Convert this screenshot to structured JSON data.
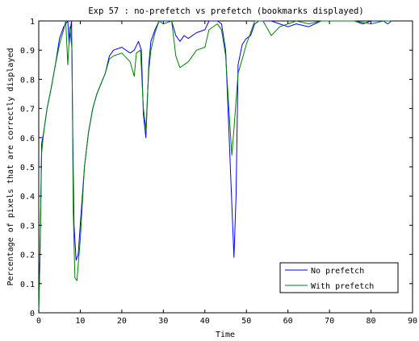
{
  "chart_data": {
    "type": "line",
    "title": "Exp 57 : no-prefetch vs prefetch (bookmarks displayed)",
    "xlabel": "Time",
    "ylabel": "Percentage of pixels that are correctly displayed",
    "xlim": [
      0,
      90
    ],
    "ylim": [
      0,
      1
    ],
    "xticks": [
      0,
      10,
      20,
      30,
      40,
      50,
      60,
      70,
      80,
      90
    ],
    "yticks": [
      0,
      0.1,
      0.2,
      0.3,
      0.4,
      0.5,
      0.6,
      0.7,
      0.8,
      0.9,
      1
    ],
    "grid": false,
    "legend": "bottom-right",
    "series": [
      {
        "name": "No prefetch",
        "color": "#0000ff",
        "points": [
          [
            0,
            0
          ],
          [
            0.3,
            0.2
          ],
          [
            0.7,
            0.58
          ],
          [
            1.2,
            0.62
          ],
          [
            2,
            0.7
          ],
          [
            3,
            0.77
          ],
          [
            4,
            0.85
          ],
          [
            5,
            0.94
          ],
          [
            6,
            0.98
          ],
          [
            7,
            1.0
          ],
          [
            7.3,
            0.92
          ],
          [
            7.6,
            0.97
          ],
          [
            7.9,
            1.0
          ],
          [
            8.2,
            0.6
          ],
          [
            8.5,
            0.3
          ],
          [
            9,
            0.18
          ],
          [
            9.5,
            0.2
          ],
          [
            10,
            0.3
          ],
          [
            11,
            0.5
          ],
          [
            12,
            0.62
          ],
          [
            13,
            0.7
          ],
          [
            14,
            0.75
          ],
          [
            16,
            0.82
          ],
          [
            17,
            0.88
          ],
          [
            18,
            0.9
          ],
          [
            20,
            0.91
          ],
          [
            22,
            0.89
          ],
          [
            23,
            0.9
          ],
          [
            24,
            0.93
          ],
          [
            24.7,
            0.9
          ],
          [
            25.2,
            0.68
          ],
          [
            25.8,
            0.6
          ],
          [
            26.5,
            0.85
          ],
          [
            27,
            0.93
          ],
          [
            28,
            0.97
          ],
          [
            29,
            1.0
          ],
          [
            30,
            1.0
          ],
          [
            32,
            1.0
          ],
          [
            33,
            0.95
          ],
          [
            34,
            0.93
          ],
          [
            35,
            0.95
          ],
          [
            36,
            0.94
          ],
          [
            38,
            0.96
          ],
          [
            40,
            0.97
          ],
          [
            41,
            1.0
          ],
          [
            43,
            1.0
          ],
          [
            44,
            0.99
          ],
          [
            45,
            0.9
          ],
          [
            46,
            0.55
          ],
          [
            46.5,
            0.37
          ],
          [
            47,
            0.19
          ],
          [
            47.5,
            0.4
          ],
          [
            48,
            0.85
          ],
          [
            49,
            0.92
          ],
          [
            50,
            0.94
          ],
          [
            51,
            0.95
          ],
          [
            52,
            0.99
          ],
          [
            53,
            1.0
          ],
          [
            56,
            1.0
          ],
          [
            58,
            0.99
          ],
          [
            60,
            0.98
          ],
          [
            62,
            0.99
          ],
          [
            65,
            0.98
          ],
          [
            68,
            1.0
          ],
          [
            72,
            1.0
          ],
          [
            76,
            1.0
          ],
          [
            78,
            0.99
          ],
          [
            80,
            1.0
          ],
          [
            83,
            1.0
          ],
          [
            84,
            0.99
          ],
          [
            85,
            1.0
          ]
        ]
      },
      {
        "name": "With prefetch",
        "color": "#008000",
        "points": [
          [
            0,
            0
          ],
          [
            0.3,
            0.18
          ],
          [
            0.7,
            0.55
          ],
          [
            1.2,
            0.62
          ],
          [
            2,
            0.7
          ],
          [
            3,
            0.77
          ],
          [
            4,
            0.85
          ],
          [
            5,
            0.92
          ],
          [
            6,
            0.97
          ],
          [
            6.5,
            1.0
          ],
          [
            7,
            0.85
          ],
          [
            7.5,
            0.98
          ],
          [
            8,
            0.9
          ],
          [
            8.3,
            0.35
          ],
          [
            8.7,
            0.12
          ],
          [
            9.2,
            0.11
          ],
          [
            10,
            0.25
          ],
          [
            11,
            0.5
          ],
          [
            12,
            0.62
          ],
          [
            13,
            0.7
          ],
          [
            14,
            0.75
          ],
          [
            16,
            0.82
          ],
          [
            17,
            0.87
          ],
          [
            18,
            0.88
          ],
          [
            20,
            0.89
          ],
          [
            22,
            0.86
          ],
          [
            23,
            0.81
          ],
          [
            23.5,
            0.89
          ],
          [
            24.5,
            0.9
          ],
          [
            25.2,
            0.7
          ],
          [
            25.8,
            0.63
          ],
          [
            26.5,
            0.83
          ],
          [
            27,
            0.9
          ],
          [
            28,
            0.96
          ],
          [
            29,
            1.0
          ],
          [
            30,
            0.99
          ],
          [
            32,
            1.0
          ],
          [
            33,
            0.88
          ],
          [
            34,
            0.84
          ],
          [
            35,
            0.85
          ],
          [
            36,
            0.86
          ],
          [
            38,
            0.9
          ],
          [
            40,
            0.91
          ],
          [
            41,
            0.97
          ],
          [
            43,
            0.99
          ],
          [
            44,
            0.97
          ],
          [
            45,
            0.88
          ],
          [
            46,
            0.65
          ],
          [
            46.5,
            0.54
          ],
          [
            47,
            0.63
          ],
          [
            48,
            0.82
          ],
          [
            49,
            0.87
          ],
          [
            50,
            0.92
          ],
          [
            51,
            0.96
          ],
          [
            52,
            1.0
          ],
          [
            54,
            1.0
          ],
          [
            56,
            0.95
          ],
          [
            58,
            0.98
          ],
          [
            60,
            0.99
          ],
          [
            62,
            1.0
          ],
          [
            65,
            0.99
          ],
          [
            68,
            1.0
          ],
          [
            72,
            1.0
          ],
          [
            76,
            1.0
          ],
          [
            80,
            0.99
          ],
          [
            83,
            1.0
          ],
          [
            85,
            1.0
          ]
        ]
      }
    ]
  }
}
